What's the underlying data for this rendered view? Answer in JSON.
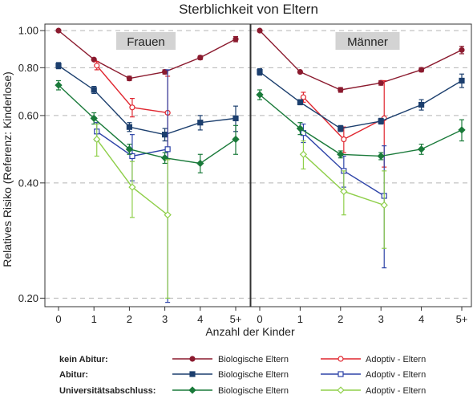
{
  "chart_data": {
    "type": "line",
    "title": "Sterblichkeit von Eltern",
    "xlabel": "Anzahl der Kinder",
    "ylabel": "Relatives Risiko (Referenz: Kinderlose)",
    "x_ticks": [
      "0",
      "1",
      "2",
      "3",
      "4",
      "5+"
    ],
    "y_ticks": [
      "0.20",
      "0.40",
      "0.60",
      "0.80",
      "1.00"
    ],
    "y_tick_values": [
      0.2,
      0.4,
      0.6,
      0.8,
      1.0
    ],
    "ylim": [
      0.19,
      1.04
    ],
    "y_scale": "log",
    "grid": "horizontal dashed",
    "panels": [
      {
        "label": "Frauen",
        "series": [
          {
            "group": "kein Abitur",
            "name": "Biologische Eltern",
            "color": "#8b1a2e",
            "marker": "filled-circle",
            "x": [
              0,
              1,
              2,
              3,
              4,
              5
            ],
            "y": [
              1.0,
              0.84,
              0.75,
              0.78,
              0.85,
              0.95
            ],
            "err": [
              null,
              null,
              0.01,
              0.01,
              0.01,
              0.015
            ]
          },
          {
            "group": "kein Abitur",
            "name": "Adoptiv - Eltern",
            "color": "#e0262f",
            "marker": "hollow-circle",
            "x": [
              1.08,
              2.08,
              3.08
            ],
            "y": [
              0.81,
              0.63,
              0.61
            ],
            "err": [
              0.02,
              0.035,
              0.15
            ]
          },
          {
            "group": "Abitur",
            "name": "Biologische Eltern",
            "color": "#1c3f6e",
            "marker": "filled-square",
            "x": [
              0,
              1,
              2,
              3,
              4,
              5
            ],
            "y": [
              0.81,
              0.7,
              0.56,
              0.535,
              0.575,
              0.59
            ],
            "err": [
              0.015,
              0.015,
              0.015,
              0.02,
              0.025,
              0.045
            ]
          },
          {
            "group": "Abitur",
            "name": "Adoptiv - Eltern",
            "color": "#2e44a8",
            "marker": "hollow-square",
            "x": [
              1.08,
              2.08,
              3.08
            ],
            "y": [
              0.545,
              0.47,
              0.49
            ],
            "err": [
              0.03,
              0.065,
              0.3
            ]
          },
          {
            "group": "Universitätsabschluss",
            "name": "Biologische Eltern",
            "color": "#1a7a3a",
            "marker": "filled-diamond",
            "x": [
              0,
              1,
              2,
              3,
              4,
              5
            ],
            "y": [
              0.72,
              0.59,
              0.49,
              0.465,
              0.45,
              0.52
            ],
            "err": [
              0.02,
              0.02,
              0.015,
              0.015,
              0.025,
              0.045
            ]
          },
          {
            "group": "Universitätsabschluss",
            "name": "Adoptiv - Eltern",
            "color": "#8fcf4a",
            "marker": "hollow-diamond",
            "x": [
              1.08,
              2.08,
              3.08
            ],
            "y": [
              0.52,
              0.39,
              0.33
            ],
            "err": [
              0.05,
              0.065,
              0.13
            ]
          }
        ]
      },
      {
        "label": "Männer",
        "series": [
          {
            "group": "kein Abitur",
            "name": "Biologische Eltern",
            "color": "#8b1a2e",
            "marker": "filled-circle",
            "x": [
              0,
              1,
              2,
              3,
              4,
              5
            ],
            "y": [
              1.0,
              0.78,
              0.7,
              0.73,
              0.79,
              0.89
            ],
            "err": [
              null,
              null,
              0.01,
              0.01,
              0.01,
              0.02
            ]
          },
          {
            "group": "kein Abitur",
            "name": "Adoptiv - Eltern",
            "color": "#e0262f",
            "marker": "hollow-circle",
            "x": [
              1.08,
              2.08,
              3.08
            ],
            "y": [
              0.67,
              0.52,
              0.59
            ],
            "err": [
              0.02,
              0.04,
              0.15
            ]
          },
          {
            "group": "Abitur",
            "name": "Biologische Eltern",
            "color": "#1c3f6e",
            "marker": "filled-square",
            "x": [
              0,
              1,
              2,
              3,
              4,
              5
            ],
            "y": [
              0.78,
              0.65,
              0.555,
              0.58,
              0.64,
              0.74
            ],
            "err": [
              0.015,
              0.01,
              0.01,
              0.01,
              0.02,
              0.03
            ]
          },
          {
            "group": "Abitur",
            "name": "Adoptiv - Eltern",
            "color": "#2e44a8",
            "marker": "hollow-square",
            "x": [
              1.08,
              2.08,
              3.08
            ],
            "y": [
              0.54,
              0.43,
              0.37
            ],
            "err": [
              0.03,
              0.04,
              0.13
            ]
          },
          {
            "group": "Universitätsabschluss",
            "name": "Biologische Eltern",
            "color": "#1a7a3a",
            "marker": "filled-diamond",
            "x": [
              0,
              1,
              2,
              3,
              4,
              5
            ],
            "y": [
              0.68,
              0.555,
              0.475,
              0.47,
              0.49,
              0.55
            ],
            "err": [
              0.02,
              0.02,
              0.01,
              0.01,
              0.015,
              0.035
            ]
          },
          {
            "group": "Universitätsabschluss",
            "name": "Adoptiv - Eltern",
            "color": "#8fcf4a",
            "marker": "hollow-diamond",
            "x": [
              1.08,
              2.08,
              3.08
            ],
            "y": [
              0.475,
              0.38,
              0.35
            ],
            "err": [
              0.04,
              0.05,
              0.08
            ]
          }
        ]
      }
    ],
    "legend": {
      "placement": "bottom",
      "rows": [
        {
          "group": "kein Abitur:",
          "bio": "Biologische Eltern",
          "adopt": "Adoptiv - Eltern",
          "bio_color": "#8b1a2e",
          "adopt_color": "#e0262f",
          "bio_marker": "filled-circle",
          "adopt_marker": "hollow-circle"
        },
        {
          "group": "Abitur:",
          "bio": "Biologische Eltern",
          "adopt": "Adoptiv - Eltern",
          "bio_color": "#1c3f6e",
          "adopt_color": "#2e44a8",
          "bio_marker": "filled-square",
          "adopt_marker": "hollow-square"
        },
        {
          "group": "Universitätsabschluss:",
          "bio": "Biologische Eltern",
          "adopt": "Adoptiv - Eltern",
          "bio_color": "#1a7a3a",
          "adopt_color": "#8fcf4a",
          "bio_marker": "filled-diamond",
          "adopt_marker": "hollow-diamond"
        }
      ]
    }
  }
}
